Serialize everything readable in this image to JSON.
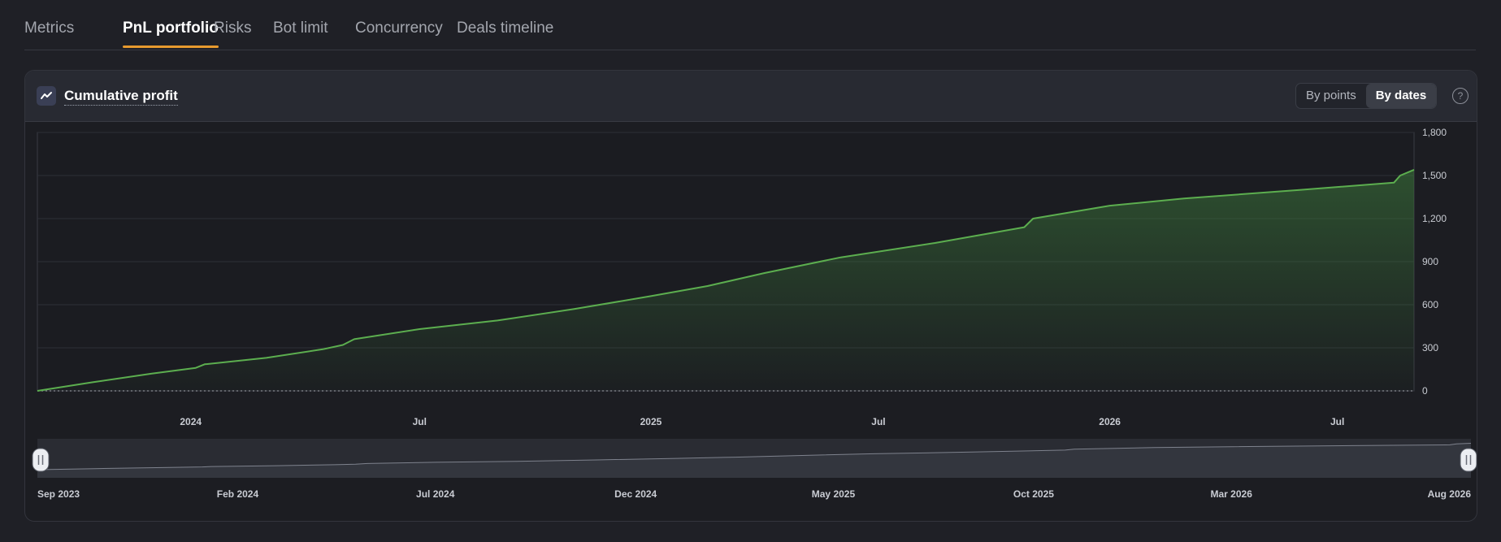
{
  "tabs": [
    {
      "label": "Metrics",
      "active": false
    },
    {
      "label": "PnL portfolio",
      "active": true
    },
    {
      "label": "Risks",
      "active": false
    },
    {
      "label": "Bot limit",
      "active": false
    },
    {
      "label": "Concurrency",
      "active": false
    },
    {
      "label": "Deals timeline",
      "active": false
    }
  ],
  "card": {
    "title": "Cumulative profit",
    "icon": "line-chart-icon",
    "toggle": [
      {
        "label": "By points",
        "active": false
      },
      {
        "label": "By dates",
        "active": true
      }
    ],
    "help_glyph": "?"
  },
  "colors": {
    "accent": "#e79a2e",
    "line": "#5cae4f",
    "fill": "#2f5a32"
  },
  "chart_data": {
    "type": "area",
    "title": "Cumulative profit",
    "x_range": [
      "2023-09-01",
      "2026-08-31"
    ],
    "ylim": [
      0,
      1800
    ],
    "yticks": [
      0,
      300,
      600,
      900,
      1200,
      1500,
      1800
    ],
    "ytick_labels": [
      "0",
      "300",
      "600",
      "900",
      "1,200",
      "1,500",
      "1,800"
    ],
    "xtick_labels": [
      {
        "date": "2024-01-01",
        "label": "2024"
      },
      {
        "date": "2024-07-01",
        "label": "Jul"
      },
      {
        "date": "2025-01-01",
        "label": "2025"
      },
      {
        "date": "2025-07-01",
        "label": "Jul"
      },
      {
        "date": "2026-01-01",
        "label": "2026"
      },
      {
        "date": "2026-07-01",
        "label": "Jul"
      }
    ],
    "series": [
      {
        "x": [
          "2023-09-01",
          "2023-10-15",
          "2023-12-01",
          "2024-01-05",
          "2024-01-12",
          "2024-03-01",
          "2024-04-15",
          "2024-05-01",
          "2024-05-10",
          "2024-07-01",
          "2024-09-01",
          "2024-11-01",
          "2025-01-01",
          "2025-02-15",
          "2025-04-01",
          "2025-06-01",
          "2025-08-15",
          "2025-10-25",
          "2025-11-01",
          "2026-01-01",
          "2026-03-01",
          "2026-06-01",
          "2026-08-15",
          "2026-08-20",
          "2026-08-31"
        ],
        "y": [
          0,
          60,
          120,
          160,
          185,
          230,
          290,
          320,
          360,
          430,
          490,
          570,
          660,
          730,
          820,
          930,
          1030,
          1140,
          1200,
          1290,
          1340,
          1400,
          1450,
          1500,
          1540
        ]
      }
    ],
    "grid": true,
    "legend": "none",
    "navigator": {
      "labels": [
        {
          "date": "2023-09-01",
          "label": "Sep 2023"
        },
        {
          "date": "2024-02-01",
          "label": "Feb 2024"
        },
        {
          "date": "2024-07-01",
          "label": "Jul 2024"
        },
        {
          "date": "2024-12-01",
          "label": "Dec 2024"
        },
        {
          "date": "2025-05-01",
          "label": "May 2025"
        },
        {
          "date": "2025-10-01",
          "label": "Oct 2025"
        },
        {
          "date": "2026-03-01",
          "label": "Mar 2026"
        },
        {
          "date": "2026-08-01",
          "label": "Aug 2026"
        }
      ]
    }
  }
}
